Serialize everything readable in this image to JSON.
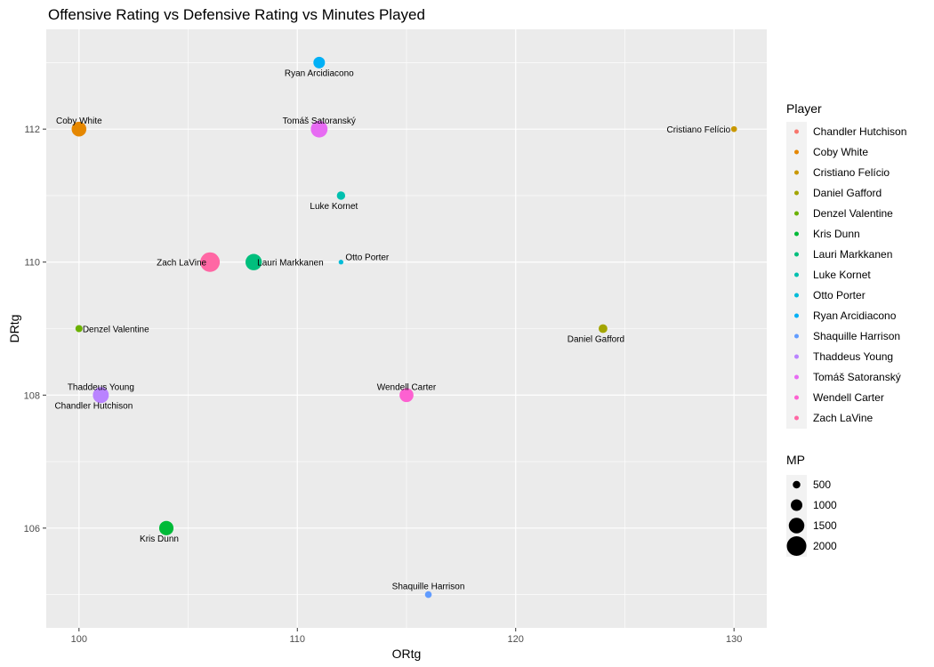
{
  "chart_data": {
    "type": "scatter",
    "title": "Offensive Rating vs Defensive Rating vs Minutes Played",
    "xlabel": "ORtg",
    "ylabel": "DRtg",
    "xlim": [
      98.5,
      131.5
    ],
    "ylim": [
      104.5,
      113.5
    ],
    "xticks": [
      100,
      110,
      120,
      130
    ],
    "yticks": [
      106,
      108,
      110,
      112
    ],
    "grid": true,
    "color_legend": {
      "title": "Player",
      "placement": "right",
      "entries": [
        {
          "name": "Chandler Hutchison",
          "color": "#F8766D"
        },
        {
          "name": "Coby White",
          "color": "#E58700"
        },
        {
          "name": "Cristiano Felício",
          "color": "#C99800"
        },
        {
          "name": "Daniel Gafford",
          "color": "#A3A500"
        },
        {
          "name": "Denzel Valentine",
          "color": "#6BB100"
        },
        {
          "name": "Kris Dunn",
          "color": "#00BA38"
        },
        {
          "name": "Lauri Markkanen",
          "color": "#00BF7D"
        },
        {
          "name": "Luke Kornet",
          "color": "#00C0AF"
        },
        {
          "name": "Otto Porter",
          "color": "#00BCD8"
        },
        {
          "name": "Ryan Arcidiacono",
          "color": "#00B0F6"
        },
        {
          "name": "Shaquille Harrison",
          "color": "#619CFF"
        },
        {
          "name": "Thaddeus Young",
          "color": "#B983FF"
        },
        {
          "name": "Tomáš Satoranský",
          "color": "#E76BF3"
        },
        {
          "name": "Wendell Carter",
          "color": "#FD61D1"
        },
        {
          "name": "Zach LaVine",
          "color": "#FF67A4"
        }
      ]
    },
    "size_legend": {
      "title": "MP",
      "values": [
        500,
        1000,
        1500,
        2000
      ]
    },
    "points": [
      {
        "player": "Ryan Arcidiacono",
        "x": 111,
        "y": 113,
        "mp": 1000
      },
      {
        "player": "Coby White",
        "x": 100,
        "y": 112,
        "mp": 1400
      },
      {
        "player": "Tomáš Satoranský",
        "x": 111,
        "y": 112,
        "mp": 1650
      },
      {
        "player": "Cristiano Felício",
        "x": 130,
        "y": 112,
        "mp": 300
      },
      {
        "player": "Luke Kornet",
        "x": 112,
        "y": 111,
        "mp": 600
      },
      {
        "player": "Zach LaVine",
        "x": 106,
        "y": 110,
        "mp": 2000
      },
      {
        "player": "Lauri Markkanen",
        "x": 108,
        "y": 110,
        "mp": 1600
      },
      {
        "player": "Otto Porter",
        "x": 112,
        "y": 110,
        "mp": 150
      },
      {
        "player": "Denzel Valentine",
        "x": 100,
        "y": 109,
        "mp": 450
      },
      {
        "player": "Daniel Gafford",
        "x": 124,
        "y": 109,
        "mp": 650
      },
      {
        "player": "Chandler Hutchison",
        "x": 101,
        "y": 108,
        "mp": 550
      },
      {
        "player": "Thaddeus Young",
        "x": 101,
        "y": 108,
        "mp": 1550
      },
      {
        "player": "Wendell Carter",
        "x": 115,
        "y": 108,
        "mp": 1300
      },
      {
        "player": "Kris Dunn",
        "x": 104,
        "y": 106,
        "mp": 1350
      },
      {
        "player": "Shaquille Harrison",
        "x": 116,
        "y": 105,
        "mp": 400
      }
    ],
    "labels": [
      {
        "text": "Ryan Arcidiacono",
        "x": 111,
        "y": 113,
        "pos": "below"
      },
      {
        "text": "Coby White",
        "x": 100,
        "y": 112,
        "pos": "above"
      },
      {
        "text": "Tomáš Satoranský",
        "x": 111,
        "y": 112,
        "pos": "above"
      },
      {
        "text": "Cristiano Felício",
        "x": 130,
        "y": 112,
        "pos": "left"
      },
      {
        "text": "Luke Kornet",
        "x": 112,
        "y": 111,
        "pos": "below-left"
      },
      {
        "text": "Zach LaVine",
        "x": 106,
        "y": 110,
        "pos": "left"
      },
      {
        "text": "Lauri Markkanen",
        "x": 108,
        "y": 110,
        "pos": "right"
      },
      {
        "text": "Otto Porter",
        "x": 112,
        "y": 110,
        "pos": "upper-right"
      },
      {
        "text": "Denzel Valentine",
        "x": 100,
        "y": 109,
        "pos": "right"
      },
      {
        "text": "Daniel Gafford",
        "x": 124,
        "y": 109,
        "pos": "below-left"
      },
      {
        "text": "Thaddeus Young",
        "x": 101,
        "y": 108,
        "pos": "above"
      },
      {
        "text": "Chandler Hutchison",
        "x": 101,
        "y": 108,
        "pos": "below-left"
      },
      {
        "text": "Wendell Carter",
        "x": 115,
        "y": 108,
        "pos": "above"
      },
      {
        "text": "Kris Dunn",
        "x": 104,
        "y": 106,
        "pos": "below-left"
      },
      {
        "text": "Shaquille Harrison",
        "x": 116,
        "y": 105,
        "pos": "above"
      }
    ]
  }
}
